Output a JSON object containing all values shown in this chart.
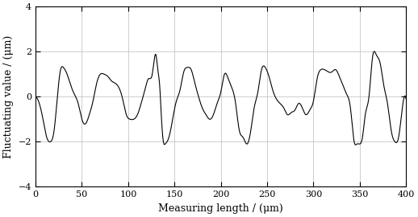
{
  "xlabel": "Measuring length / (μm)",
  "ylabel": "Fluctuating value / (μm)",
  "xlim": [
    0,
    400
  ],
  "ylim": [
    -4,
    4
  ],
  "xticks": [
    0,
    50,
    100,
    150,
    200,
    250,
    300,
    350,
    400
  ],
  "yticks": [
    -4,
    -2,
    0,
    2,
    4
  ],
  "line_color": "#000000",
  "line_width": 0.8,
  "bg_color": "#ffffff",
  "key_points_x": [
    0,
    4,
    8,
    12,
    16,
    20,
    24,
    27,
    30,
    34,
    38,
    42,
    46,
    50,
    54,
    58,
    62,
    66,
    70,
    74,
    78,
    82,
    86,
    90,
    94,
    98,
    102,
    106,
    110,
    114,
    118,
    122,
    126,
    130,
    132,
    134,
    136,
    138,
    140,
    144,
    148,
    152,
    156,
    160,
    164,
    168,
    172,
    176,
    180,
    184,
    188,
    192,
    196,
    200,
    204,
    208,
    212,
    216,
    220,
    224,
    228,
    232,
    236,
    240,
    244,
    248,
    252,
    256,
    260,
    264,
    268,
    272,
    276,
    280,
    284,
    288,
    292,
    296,
    300,
    304,
    308,
    312,
    316,
    320,
    324,
    328,
    332,
    336,
    340,
    344,
    347,
    350,
    353,
    356,
    360,
    364,
    368,
    372,
    376,
    380,
    384,
    388,
    392,
    396,
    400
  ],
  "key_points_y": [
    0.0,
    -0.3,
    -1.0,
    -1.8,
    -2.0,
    -1.5,
    0.2,
    1.2,
    1.3,
    1.0,
    0.5,
    0.1,
    -0.3,
    -1.0,
    -1.2,
    -0.8,
    -0.2,
    0.6,
    1.0,
    1.0,
    0.9,
    0.7,
    0.6,
    0.4,
    -0.1,
    -0.8,
    -1.0,
    -1.0,
    -0.8,
    -0.3,
    0.3,
    0.8,
    1.0,
    1.85,
    1.2,
    0.5,
    -1.0,
    -2.0,
    -2.1,
    -1.8,
    -1.0,
    -0.2,
    0.3,
    1.1,
    1.3,
    1.2,
    0.6,
    0.0,
    -0.5,
    -0.8,
    -1.0,
    -0.8,
    -0.3,
    0.2,
    1.0,
    0.8,
    0.4,
    -0.3,
    -1.5,
    -1.8,
    -2.1,
    -1.6,
    -0.5,
    0.2,
    1.2,
    1.3,
    0.9,
    0.3,
    -0.1,
    -0.3,
    -0.5,
    -0.8,
    -0.7,
    -0.6,
    -0.3,
    -0.5,
    -0.8,
    -0.6,
    -0.2,
    0.8,
    1.2,
    1.2,
    1.1,
    1.1,
    1.2,
    0.9,
    0.5,
    0.1,
    -0.5,
    -2.0,
    -2.1,
    -2.1,
    -1.8,
    -0.8,
    0.0,
    1.8,
    1.85,
    1.5,
    0.5,
    -0.3,
    -1.5,
    -2.0,
    -1.8,
    -0.5,
    -0.1
  ]
}
